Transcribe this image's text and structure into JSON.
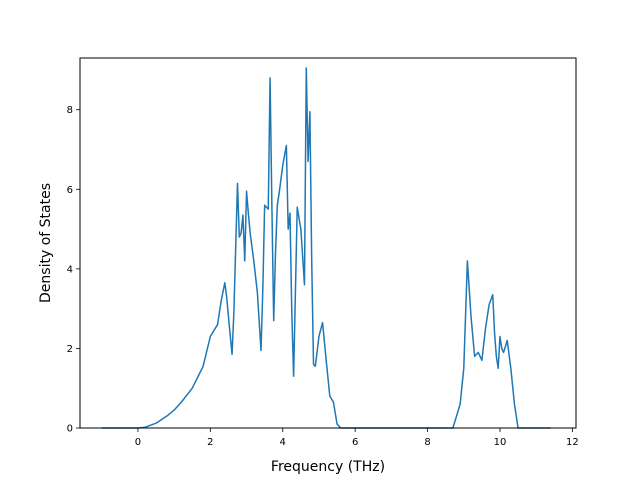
{
  "chart_data": {
    "type": "line",
    "title": "",
    "xlabel": "Frequency (THz)",
    "ylabel": "Density of States",
    "xlim": [
      -1.6,
      12.1
    ],
    "ylim": [
      0,
      9.3
    ],
    "xticks": [
      0,
      2,
      4,
      6,
      8,
      10,
      12
    ],
    "yticks": [
      0,
      2,
      4,
      6,
      8
    ],
    "grid": false,
    "legend": "none",
    "series": [
      {
        "color": "#1f77b4",
        "x": [
          -1.0,
          0.0,
          0.2,
          0.5,
          0.8,
          1.0,
          1.2,
          1.5,
          1.8,
          2.0,
          2.2,
          2.3,
          2.4,
          2.45,
          2.5,
          2.6,
          2.65,
          2.75,
          2.8,
          2.85,
          2.9,
          2.95,
          3.0,
          3.05,
          3.1,
          3.2,
          3.3,
          3.4,
          3.45,
          3.5,
          3.6,
          3.65,
          3.7,
          3.75,
          3.8,
          3.85,
          3.9,
          4.0,
          4.1,
          4.15,
          4.2,
          4.25,
          4.3,
          4.4,
          4.5,
          4.6,
          4.65,
          4.7,
          4.75,
          4.8,
          4.85,
          4.9,
          5.0,
          5.1,
          5.2,
          5.3,
          5.4,
          5.5,
          5.6,
          5.65,
          5.7,
          6.0,
          8.0,
          8.7,
          8.8,
          8.9,
          9.0,
          9.1,
          9.2,
          9.3,
          9.4,
          9.5,
          9.6,
          9.7,
          9.8,
          9.85,
          9.9,
          9.95,
          10.0,
          10.05,
          10.1,
          10.2,
          10.3,
          10.4,
          10.5,
          11.4
        ],
        "y": [
          0,
          0,
          0.02,
          0.12,
          0.3,
          0.45,
          0.65,
          1.0,
          1.55,
          2.3,
          2.6,
          3.2,
          3.65,
          3.3,
          2.8,
          1.85,
          2.9,
          6.15,
          4.8,
          4.9,
          5.35,
          4.2,
          5.95,
          5.4,
          4.9,
          4.2,
          3.4,
          1.95,
          3.5,
          5.6,
          5.5,
          8.8,
          5.6,
          2.7,
          4.4,
          5.6,
          5.9,
          6.6,
          7.1,
          5.0,
          5.4,
          2.9,
          1.3,
          5.55,
          5.0,
          3.6,
          9.05,
          6.7,
          7.95,
          4.2,
          1.6,
          1.55,
          2.3,
          2.65,
          1.7,
          0.8,
          0.65,
          0.1,
          0,
          0,
          0,
          0,
          0,
          0,
          0.3,
          0.6,
          1.5,
          4.2,
          2.8,
          1.8,
          1.9,
          1.7,
          2.5,
          3.1,
          3.35,
          2.4,
          1.8,
          1.5,
          2.3,
          2.0,
          1.9,
          2.2,
          1.5,
          0.6,
          0,
          0
        ]
      }
    ]
  }
}
